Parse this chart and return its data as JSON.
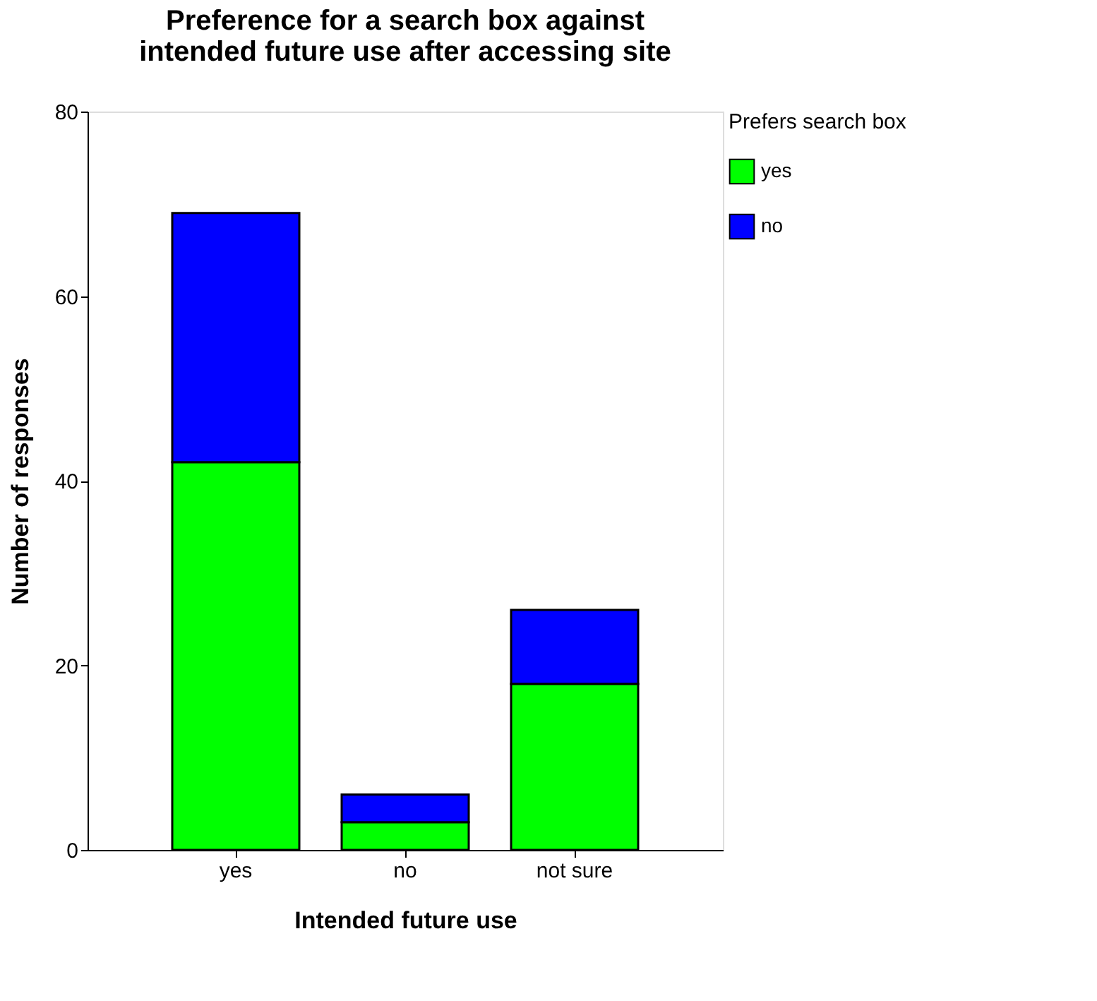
{
  "chart_data": {
    "type": "bar",
    "title": "Preference for a search box against\nintended future use after accessing site",
    "xlabel": "Intended future use",
    "ylabel": "Number of responses",
    "legend_title": "Prefers search box",
    "categories": [
      "yes",
      "no",
      "not sure"
    ],
    "series": [
      {
        "name": "yes",
        "color": "#00ff00",
        "values": [
          42,
          3,
          18
        ]
      },
      {
        "name": "no",
        "color": "#0000ff",
        "values": [
          27,
          3,
          8
        ]
      }
    ],
    "stacked": true,
    "ylim": [
      0,
      80
    ],
    "yticks": [
      0,
      20,
      40,
      60,
      80
    ],
    "grid": false,
    "legend": "right"
  }
}
